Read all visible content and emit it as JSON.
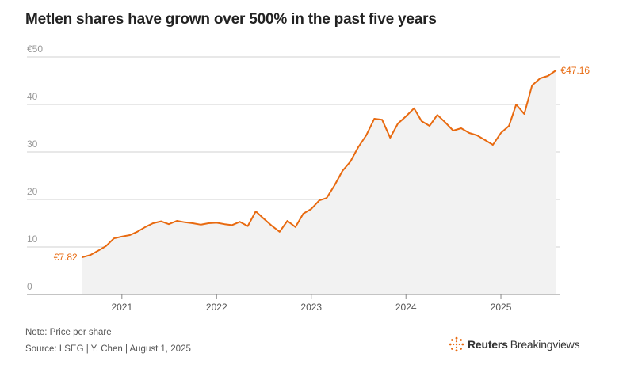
{
  "title": "Metlen shares have grown over 500% in the past five years",
  "note": "Note: Price per share",
  "source": "Source: LSEG | Y. Chen | August 1, 2025",
  "brand": {
    "name_bold": "Reuters",
    "name_regular": "Breakingviews"
  },
  "colors": {
    "line": "#e86a10",
    "area": "#f2f2f2",
    "grid": "#d0d0d0",
    "axis": "#888888"
  },
  "chart_data": {
    "type": "line",
    "title": "Metlen shares have grown over 500% in the past five years",
    "xlabel": "",
    "ylabel": "",
    "y_unit": "€",
    "ylim": [
      0,
      50
    ],
    "y_ticks": [
      0,
      10,
      20,
      30,
      40,
      50
    ],
    "y_tick_labels": [
      "0",
      "10",
      "20",
      "30",
      "40",
      "€50"
    ],
    "xlim": [
      "2020-01-01",
      "2025-08-15"
    ],
    "x_ticks": [
      "2021-01-01",
      "2022-01-01",
      "2023-01-01",
      "2024-01-01",
      "2025-01-01"
    ],
    "x_tick_labels": [
      "2021",
      "2022",
      "2023",
      "2024",
      "2025"
    ],
    "grid": "horizontal",
    "area_fill": true,
    "annotations": [
      {
        "text": "€7.82",
        "date": "2020-08-01",
        "value": 7.82
      },
      {
        "text": "€47.16",
        "date": "2025-08-01",
        "value": 47.16
      }
    ],
    "series": [
      {
        "x": [
          "2020-08-01",
          "2020-09-01",
          "2020-10-01",
          "2020-11-01",
          "2020-12-01",
          "2021-01-01",
          "2021-02-01",
          "2021-03-01",
          "2021-04-01",
          "2021-05-01",
          "2021-06-01",
          "2021-07-01",
          "2021-08-01",
          "2021-09-01",
          "2021-10-01",
          "2021-11-01",
          "2021-12-01",
          "2022-01-01",
          "2022-02-01",
          "2022-03-01",
          "2022-04-01",
          "2022-05-01",
          "2022-06-01",
          "2022-07-01",
          "2022-08-01",
          "2022-09-01",
          "2022-10-01",
          "2022-11-01",
          "2022-12-01",
          "2023-01-01",
          "2023-02-01",
          "2023-03-01",
          "2023-04-01",
          "2023-05-01",
          "2023-06-01",
          "2023-07-01",
          "2023-08-01",
          "2023-09-01",
          "2023-10-01",
          "2023-11-01",
          "2023-12-01",
          "2024-01-01",
          "2024-02-01",
          "2024-03-01",
          "2024-04-01",
          "2024-05-01",
          "2024-06-01",
          "2024-07-01",
          "2024-08-01",
          "2024-09-01",
          "2024-10-01",
          "2024-11-01",
          "2024-12-01",
          "2025-01-01",
          "2025-02-01",
          "2025-03-01",
          "2025-04-01",
          "2025-05-01",
          "2025-06-01",
          "2025-07-01",
          "2025-08-01"
        ],
        "values": [
          7.82,
          8.3,
          9.2,
          10.2,
          11.8,
          12.2,
          12.5,
          13.2,
          14.2,
          15.0,
          15.4,
          14.8,
          15.5,
          15.2,
          15.0,
          14.7,
          15.0,
          15.1,
          14.8,
          14.6,
          15.3,
          14.4,
          17.5,
          16.0,
          14.5,
          13.2,
          15.5,
          14.2,
          17.0,
          18.0,
          19.8,
          20.3,
          23.0,
          26.0,
          28.0,
          31.0,
          33.5,
          37.0,
          36.8,
          33.0,
          36.0,
          37.5,
          39.2,
          36.5,
          35.5,
          37.8,
          36.2,
          34.5,
          35.0,
          34.0,
          33.5,
          32.5,
          31.5,
          34.0,
          35.5,
          40.0,
          38.0,
          44.0,
          45.5,
          46.0,
          47.16
        ]
      }
    ]
  }
}
